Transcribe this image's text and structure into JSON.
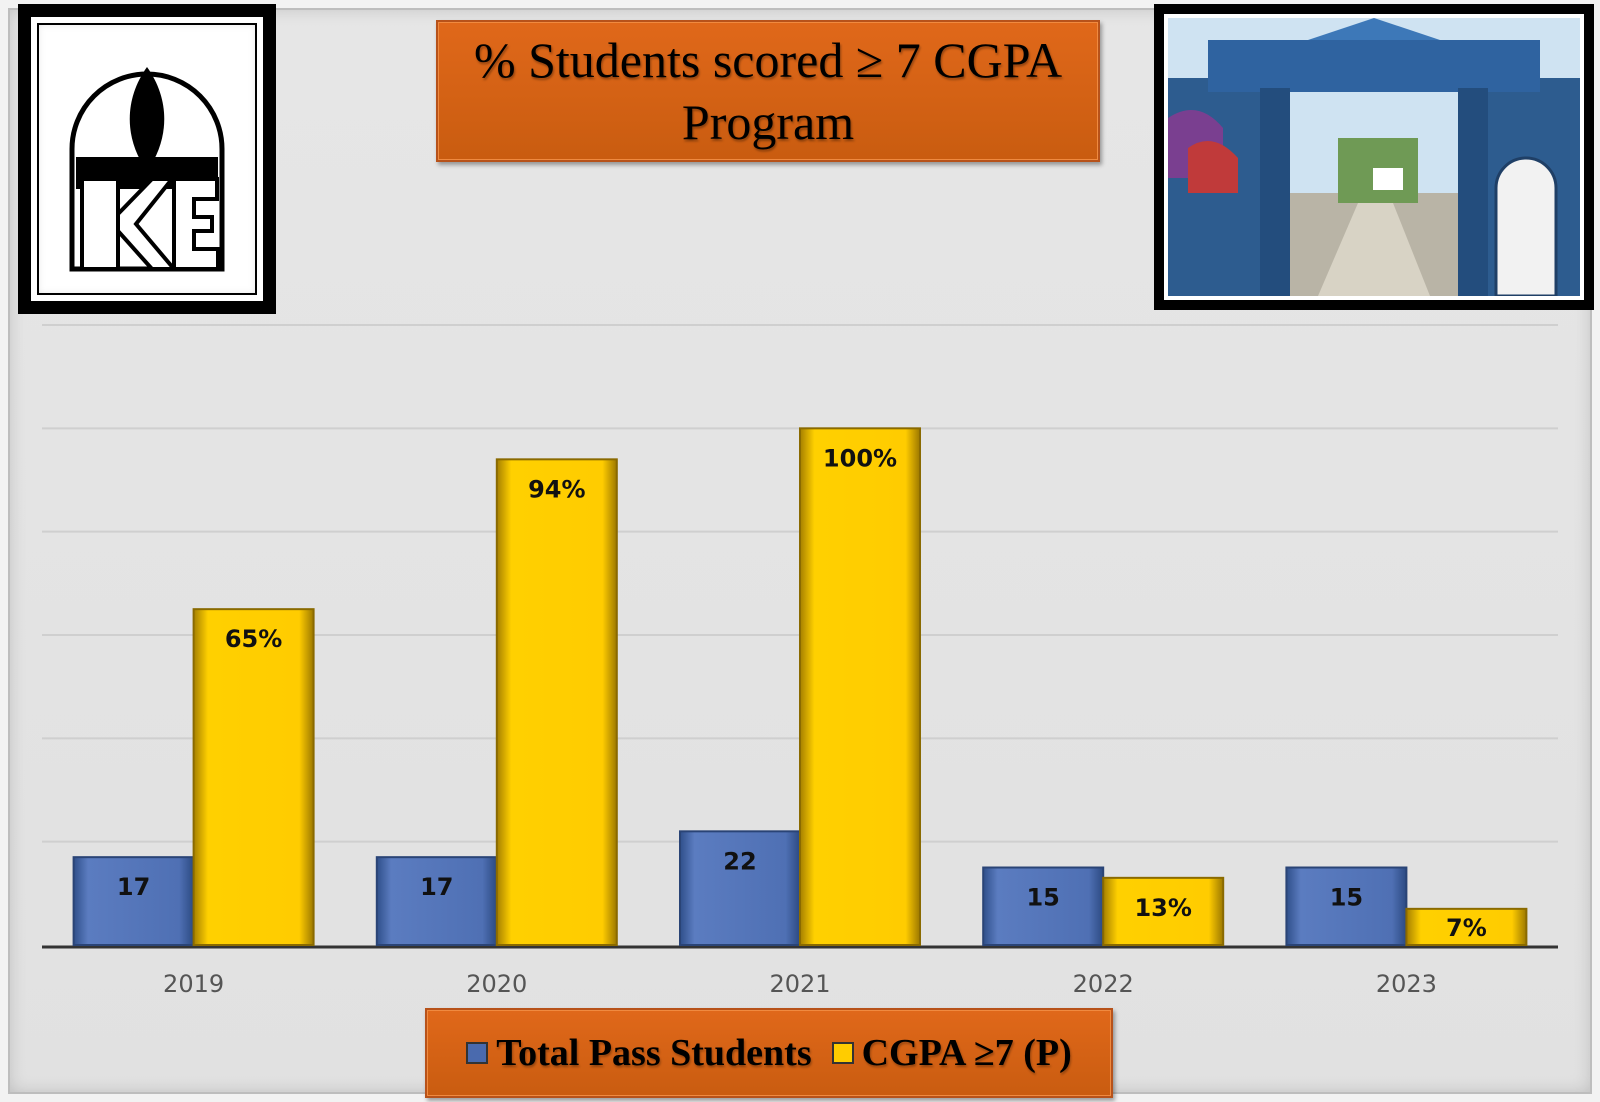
{
  "title": "% Students scored ≥ 7 CGPA\nProgram",
  "legend": {
    "total_label": "Total Pass Students",
    "cgpa_label": "CGPA ≥7 (P)"
  },
  "colors": {
    "total": "#4a6aae",
    "cgpa": "#ffcc00",
    "title_bg": "#d9641a"
  },
  "chart_data": {
    "type": "bar",
    "categories": [
      "2019",
      "2020",
      "2021",
      "2022",
      "2023"
    ],
    "series": [
      {
        "name": "Total Pass Students",
        "values": [
          17,
          17,
          22,
          15,
          15
        ],
        "labels": [
          "17",
          "17",
          "22",
          "15",
          "15"
        ]
      },
      {
        "name": "CGPA ≥7 (P)",
        "values": [
          65,
          94,
          100,
          13,
          7
        ],
        "labels": [
          "65%",
          "94%",
          "100%",
          "13%",
          "7%"
        ]
      }
    ],
    "title": "% Students scored ≥ 7 CGPA Program",
    "ylim": [
      0,
      120
    ],
    "grid": true,
    "legend_position": "bottom-center"
  }
}
